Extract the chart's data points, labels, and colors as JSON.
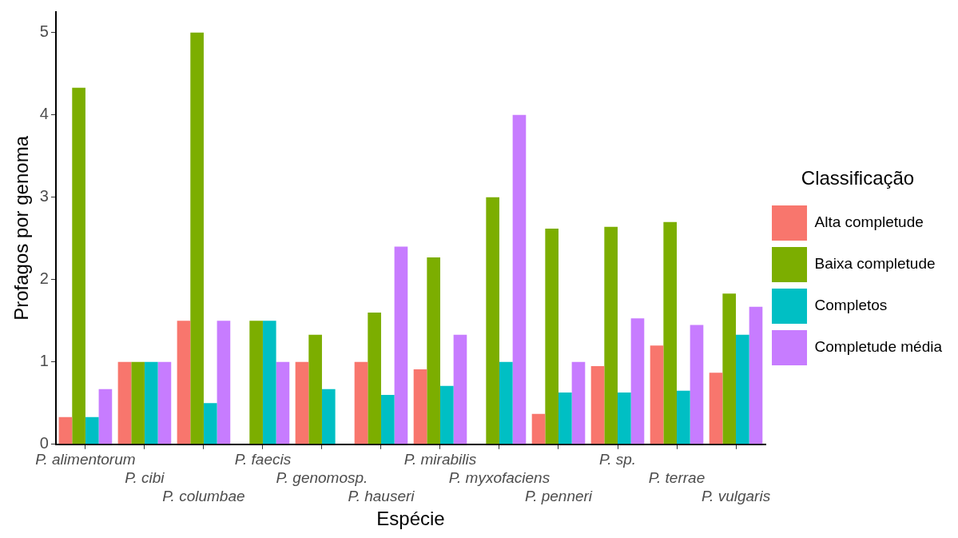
{
  "chart_data": {
    "type": "bar",
    "xlabel": "Espécie",
    "ylabel": "Profagos por genoma",
    "legend_title": "Classificação",
    "legend": "right",
    "grid": false,
    "categories": [
      "P. alimentorum",
      "P. cibi",
      "P. columbae",
      "P. faecis",
      "P. genomosp.",
      "P. hauseri",
      "P. mirabilis",
      "P. myxofaciens",
      "P. penneri",
      "P. sp.",
      "P. terrae",
      "P. vulgaris"
    ],
    "ylim": [
      0,
      5.25
    ],
    "yticks": [
      0,
      1,
      2,
      3,
      4,
      5
    ],
    "series": [
      {
        "name": "Alta completude",
        "color": "#f8766d",
        "values": [
          0.33,
          1,
          1.5,
          null,
          1,
          1,
          0.91,
          null,
          0.37,
          0.95,
          1.2,
          0.87
        ]
      },
      {
        "name": "Baixa completude",
        "color": "#7cae00",
        "values": [
          4.33,
          1,
          5,
          1.5,
          1.33,
          1.6,
          2.27,
          3,
          2.62,
          2.64,
          2.7,
          1.83
        ]
      },
      {
        "name": "Completos",
        "color": "#00bfc4",
        "values": [
          0.33,
          1,
          0.5,
          1.5,
          0.67,
          0.6,
          0.71,
          1,
          0.63,
          0.63,
          0.65,
          1.33
        ]
      },
      {
        "name": "Completude média",
        "color": "#c77cff",
        "values": [
          0.67,
          1,
          1.5,
          1,
          null,
          2.4,
          1.33,
          4,
          1,
          1.53,
          1.45,
          1.67
        ]
      }
    ]
  }
}
